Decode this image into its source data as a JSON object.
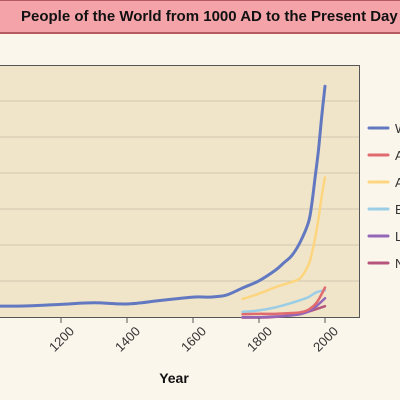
{
  "title": "People of the World from 1000 AD to the Present Day",
  "chart_data": {
    "type": "line",
    "title": "People of the World from 1000 AD to the Present Day",
    "xlabel": "Year",
    "ylabel": "",
    "xlim": [
      1000,
      2000
    ],
    "x_ticks": [
      "1200",
      "1400",
      "1600",
      "1800",
      "2000"
    ],
    "grid": true,
    "legend_placement": "right",
    "series": [
      {
        "name": "W",
        "color": "#6278c0",
        "x": [
          1000,
          1100,
          1200,
          1300,
          1400,
          1500,
          1600,
          1650,
          1700,
          1750,
          1800,
          1850,
          1875,
          1900,
          1925,
          1950,
          1960,
          1970,
          1980,
          1990,
          2000
        ],
        "y": [
          0.31,
          0.32,
          0.36,
          0.4,
          0.37,
          0.46,
          0.55,
          0.55,
          0.6,
          0.79,
          0.98,
          1.26,
          1.45,
          1.65,
          2.0,
          2.52,
          3.0,
          3.7,
          4.4,
          5.3,
          6.1
        ]
      },
      {
        "name": "A",
        "color": "#e06a6e",
        "x": [
          1750,
          1800,
          1850,
          1900,
          1925,
          1950,
          1975,
          2000
        ],
        "y": [
          0.1,
          0.11,
          0.11,
          0.13,
          0.15,
          0.22,
          0.41,
          0.8
        ]
      },
      {
        "name": "A",
        "color": "#fdd57e",
        "x": [
          1750,
          1800,
          1850,
          1900,
          1925,
          1950,
          1960,
          1970,
          1980,
          1990,
          2000
        ],
        "y": [
          0.5,
          0.64,
          0.81,
          0.95,
          1.05,
          1.4,
          1.7,
          2.1,
          2.6,
          3.2,
          3.7
        ]
      },
      {
        "name": "E",
        "color": "#9ccde6",
        "x": [
          1750,
          1800,
          1850,
          1900,
          1925,
          1950,
          1975,
          2000
        ],
        "y": [
          0.16,
          0.2,
          0.28,
          0.4,
          0.47,
          0.55,
          0.68,
          0.73
        ]
      },
      {
        "name": "L",
        "color": "#9466b8",
        "x": [
          1750,
          1800,
          1850,
          1900,
          1925,
          1950,
          1975,
          2000
        ],
        "y": [
          0.02,
          0.02,
          0.04,
          0.07,
          0.1,
          0.17,
          0.32,
          0.52
        ]
      },
      {
        "name": "N",
        "color": "#b5557b",
        "x": [
          1750,
          1800,
          1850,
          1900,
          1925,
          1950,
          1975,
          2000
        ],
        "y": [
          0.01,
          0.01,
          0.03,
          0.08,
          0.12,
          0.17,
          0.24,
          0.31
        ]
      }
    ]
  }
}
